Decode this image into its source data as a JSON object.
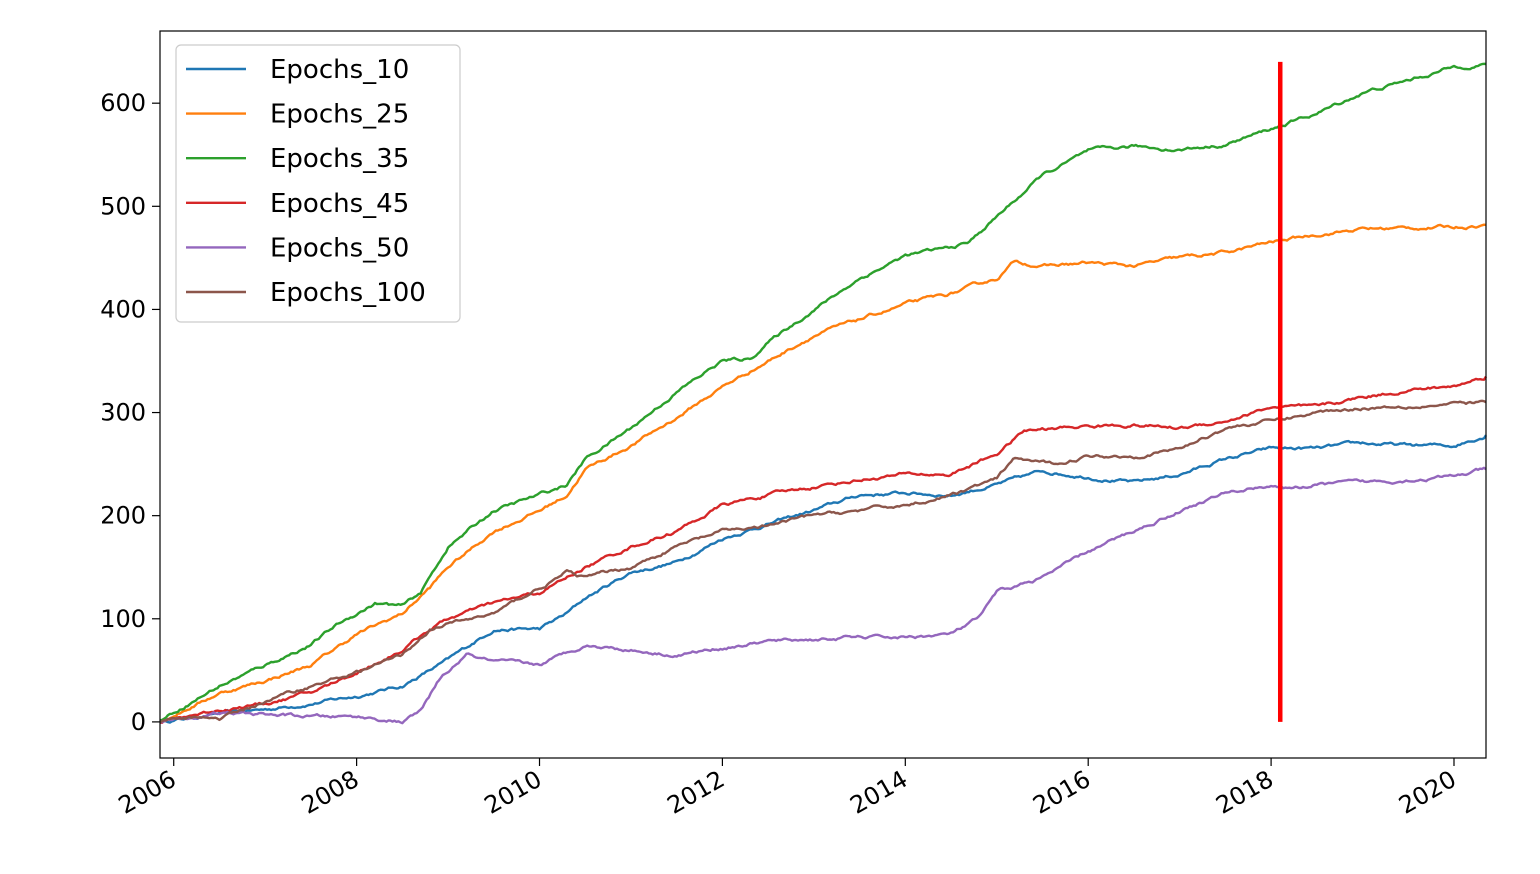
{
  "chart_data": {
    "type": "line",
    "title": "",
    "xlabel": "",
    "ylabel": "",
    "xlim": [
      2005.85,
      2020.35
    ],
    "ylim": [
      -35,
      670
    ],
    "x_ticks": [
      2006,
      2008,
      2010,
      2012,
      2014,
      2016,
      2018,
      2020
    ],
    "x_tick_labels": [
      "2006",
      "2008",
      "2010",
      "2012",
      "2014",
      "2016",
      "2018",
      "2020"
    ],
    "y_ticks": [
      0,
      100,
      200,
      300,
      400,
      500,
      600
    ],
    "y_tick_labels": [
      "0",
      "100",
      "200",
      "300",
      "400",
      "500",
      "600"
    ],
    "grid": false,
    "legend_position": "top-left",
    "vertical_marker": {
      "x": 2018.1,
      "y_range": [
        0,
        640
      ],
      "color": "#ff0000"
    },
    "series": [
      {
        "name": "Epochs_10",
        "color": "#1f77b4",
        "points": [
          [
            2005.85,
            0
          ],
          [
            2006.5,
            8
          ],
          [
            2007.0,
            12
          ],
          [
            2007.5,
            18
          ],
          [
            2008.0,
            25
          ],
          [
            2008.5,
            35
          ],
          [
            2009.0,
            60
          ],
          [
            2009.5,
            90
          ],
          [
            2010.0,
            90
          ],
          [
            2010.3,
            105
          ],
          [
            2010.5,
            120
          ],
          [
            2011.0,
            145
          ],
          [
            2011.5,
            155
          ],
          [
            2012.0,
            178
          ],
          [
            2012.5,
            192
          ],
          [
            2013.0,
            205
          ],
          [
            2013.5,
            220
          ],
          [
            2014.0,
            222
          ],
          [
            2014.5,
            220
          ],
          [
            2015.0,
            230
          ],
          [
            2015.5,
            243
          ],
          [
            2016.0,
            238
          ],
          [
            2016.5,
            232
          ],
          [
            2017.0,
            240
          ],
          [
            2017.5,
            255
          ],
          [
            2018.0,
            265
          ],
          [
            2018.5,
            265
          ],
          [
            2019.0,
            270
          ],
          [
            2019.5,
            268
          ],
          [
            2020.0,
            268
          ],
          [
            2020.35,
            278
          ]
        ]
      },
      {
        "name": "Epochs_25",
        "color": "#ff7f0e",
        "points": [
          [
            2005.85,
            0
          ],
          [
            2006.5,
            28
          ],
          [
            2007.0,
            40
          ],
          [
            2007.5,
            55
          ],
          [
            2008.0,
            85
          ],
          [
            2008.5,
            105
          ],
          [
            2008.8,
            130
          ],
          [
            2009.0,
            150
          ],
          [
            2009.5,
            185
          ],
          [
            2010.0,
            205
          ],
          [
            2010.3,
            220
          ],
          [
            2010.5,
            245
          ],
          [
            2011.0,
            268
          ],
          [
            2011.5,
            295
          ],
          [
            2012.0,
            325
          ],
          [
            2012.5,
            350
          ],
          [
            2013.0,
            375
          ],
          [
            2013.5,
            390
          ],
          [
            2014.0,
            405
          ],
          [
            2014.5,
            415
          ],
          [
            2015.0,
            430
          ],
          [
            2015.2,
            447
          ],
          [
            2015.5,
            442
          ],
          [
            2016.0,
            445
          ],
          [
            2016.5,
            442
          ],
          [
            2017.0,
            450
          ],
          [
            2017.5,
            455
          ],
          [
            2018.0,
            465
          ],
          [
            2018.5,
            473
          ],
          [
            2019.0,
            478
          ],
          [
            2019.5,
            479
          ],
          [
            2020.0,
            480
          ],
          [
            2020.35,
            482
          ]
        ]
      },
      {
        "name": "Epochs_35",
        "color": "#2ca02c",
        "points": [
          [
            2005.85,
            2
          ],
          [
            2006.5,
            35
          ],
          [
            2007.0,
            55
          ],
          [
            2007.5,
            75
          ],
          [
            2007.8,
            95
          ],
          [
            2008.2,
            115
          ],
          [
            2008.5,
            112
          ],
          [
            2008.7,
            125
          ],
          [
            2009.0,
            170
          ],
          [
            2009.5,
            205
          ],
          [
            2010.0,
            220
          ],
          [
            2010.3,
            230
          ],
          [
            2010.5,
            255
          ],
          [
            2011.0,
            285
          ],
          [
            2011.5,
            320
          ],
          [
            2012.0,
            350
          ],
          [
            2012.3,
            352
          ],
          [
            2012.5,
            368
          ],
          [
            2013.0,
            400
          ],
          [
            2013.5,
            430
          ],
          [
            2014.0,
            452
          ],
          [
            2014.5,
            460
          ],
          [
            2014.7,
            465
          ],
          [
            2015.0,
            490
          ],
          [
            2015.5,
            530
          ],
          [
            2016.0,
            553
          ],
          [
            2016.5,
            558
          ],
          [
            2017.0,
            555
          ],
          [
            2017.5,
            560
          ],
          [
            2018.0,
            575
          ],
          [
            2018.5,
            590
          ],
          [
            2019.0,
            610
          ],
          [
            2019.5,
            622
          ],
          [
            2020.0,
            635
          ],
          [
            2020.35,
            638
          ]
        ]
      },
      {
        "name": "Epochs_45",
        "color": "#d62728",
        "points": [
          [
            2005.85,
            0
          ],
          [
            2006.5,
            12
          ],
          [
            2007.0,
            18
          ],
          [
            2007.5,
            28
          ],
          [
            2008.0,
            48
          ],
          [
            2008.5,
            70
          ],
          [
            2008.8,
            90
          ],
          [
            2009.0,
            100
          ],
          [
            2009.5,
            115
          ],
          [
            2010.0,
            125
          ],
          [
            2010.5,
            150
          ],
          [
            2011.0,
            170
          ],
          [
            2011.5,
            185
          ],
          [
            2012.0,
            210
          ],
          [
            2012.5,
            220
          ],
          [
            2013.0,
            228
          ],
          [
            2013.5,
            235
          ],
          [
            2014.0,
            240
          ],
          [
            2014.5,
            240
          ],
          [
            2015.0,
            260
          ],
          [
            2015.3,
            282
          ],
          [
            2016.0,
            287
          ],
          [
            2016.5,
            288
          ],
          [
            2017.0,
            285
          ],
          [
            2017.5,
            292
          ],
          [
            2018.0,
            305
          ],
          [
            2018.5,
            305
          ],
          [
            2019.0,
            315
          ],
          [
            2019.5,
            322
          ],
          [
            2020.0,
            325
          ],
          [
            2020.35,
            335
          ]
        ]
      },
      {
        "name": "Epochs_50",
        "color": "#9467bd",
        "points": [
          [
            2005.85,
            0
          ],
          [
            2006.5,
            8
          ],
          [
            2007.0,
            7
          ],
          [
            2007.5,
            5
          ],
          [
            2008.0,
            5
          ],
          [
            2008.5,
            0
          ],
          [
            2008.7,
            10
          ],
          [
            2008.9,
            40
          ],
          [
            2009.2,
            65
          ],
          [
            2009.5,
            58
          ],
          [
            2010.0,
            55
          ],
          [
            2010.5,
            75
          ],
          [
            2011.0,
            70
          ],
          [
            2011.5,
            65
          ],
          [
            2012.0,
            72
          ],
          [
            2012.5,
            78
          ],
          [
            2013.0,
            80
          ],
          [
            2013.5,
            82
          ],
          [
            2014.0,
            82
          ],
          [
            2014.5,
            85
          ],
          [
            2014.8,
            100
          ],
          [
            2015.0,
            125
          ],
          [
            2015.5,
            140
          ],
          [
            2016.0,
            165
          ],
          [
            2016.5,
            185
          ],
          [
            2017.0,
            205
          ],
          [
            2017.5,
            222
          ],
          [
            2018.0,
            230
          ],
          [
            2018.2,
            225
          ],
          [
            2018.5,
            230
          ],
          [
            2019.0,
            232
          ],
          [
            2019.5,
            235
          ],
          [
            2020.0,
            238
          ],
          [
            2020.35,
            245
          ]
        ]
      },
      {
        "name": "Epochs_100",
        "color": "#8c564b",
        "points": [
          [
            2005.85,
            0
          ],
          [
            2006.3,
            5
          ],
          [
            2006.5,
            3
          ],
          [
            2007.0,
            20
          ],
          [
            2007.5,
            35
          ],
          [
            2008.0,
            48
          ],
          [
            2008.5,
            65
          ],
          [
            2008.8,
            90
          ],
          [
            2009.0,
            95
          ],
          [
            2009.5,
            105
          ],
          [
            2010.0,
            130
          ],
          [
            2010.3,
            145
          ],
          [
            2010.5,
            140
          ],
          [
            2011.0,
            150
          ],
          [
            2011.5,
            170
          ],
          [
            2012.0,
            185
          ],
          [
            2012.5,
            190
          ],
          [
            2013.0,
            200
          ],
          [
            2013.5,
            205
          ],
          [
            2014.0,
            210
          ],
          [
            2014.5,
            220
          ],
          [
            2015.0,
            235
          ],
          [
            2015.2,
            255
          ],
          [
            2015.6,
            250
          ],
          [
            2016.0,
            258
          ],
          [
            2016.5,
            258
          ],
          [
            2017.0,
            265
          ],
          [
            2017.5,
            285
          ],
          [
            2018.0,
            292
          ],
          [
            2018.5,
            300
          ],
          [
            2019.0,
            305
          ],
          [
            2019.5,
            307
          ],
          [
            2020.0,
            308
          ],
          [
            2020.35,
            310
          ]
        ]
      }
    ]
  }
}
